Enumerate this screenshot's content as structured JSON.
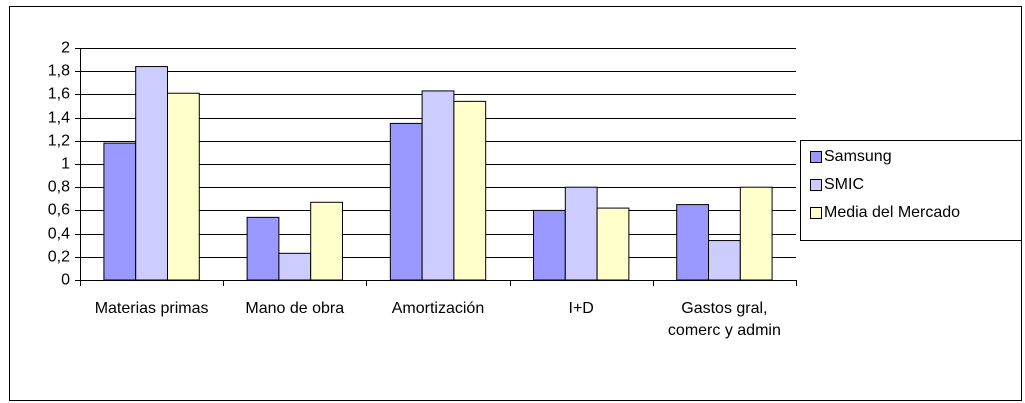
{
  "chart_data": {
    "type": "bar",
    "categories": [
      "Materias primas",
      "Mano de obra",
      "Amortización",
      "I+D",
      "Gastos gral, comerc y admin"
    ],
    "series": [
      {
        "name": "Samsung",
        "color": "#9999ff",
        "values": [
          1.18,
          0.54,
          1.35,
          0.6,
          0.65
        ]
      },
      {
        "name": "SMIC",
        "color": "#ccccff",
        "values": [
          1.84,
          0.23,
          1.63,
          0.8,
          0.34
        ]
      },
      {
        "name": "Media del Mercado",
        "color": "#ffffcc",
        "values": [
          1.61,
          0.67,
          1.54,
          0.62,
          0.8
        ]
      }
    ],
    "ylim": [
      0,
      2
    ],
    "yticks": [
      0,
      {
        "value": 0.2,
        "label": "0,2"
      },
      {
        "value": 0.4,
        "label": "0,4"
      },
      {
        "value": 0.6,
        "label": "0,6"
      },
      {
        "value": 0.8,
        "label": "0,8"
      },
      1,
      {
        "value": 1.2,
        "label": "1,2"
      },
      {
        "value": 1.4,
        "label": "1,4"
      },
      {
        "value": 1.6,
        "label": "1,6"
      },
      {
        "value": 1.8,
        "label": "1,8"
      },
      2
    ],
    "grid": true,
    "legend": "right"
  }
}
